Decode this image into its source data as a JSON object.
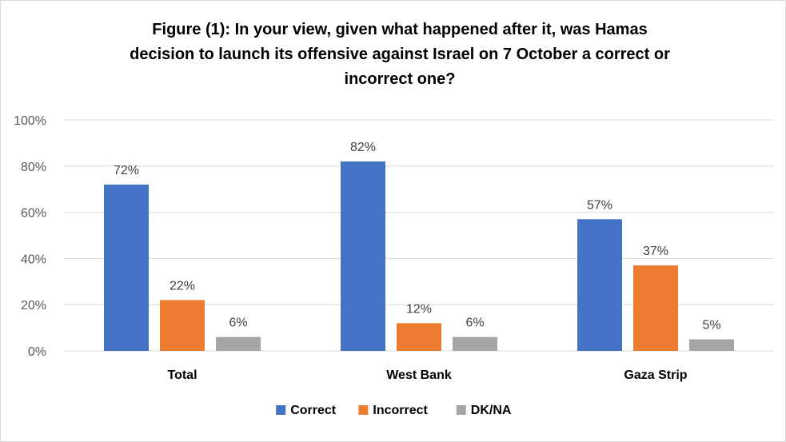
{
  "chart_data": {
    "type": "bar",
    "title_lines": [
      "Figure (1): In your view, given what happened after it, was Hamas",
      "decision to launch its offensive against Israel on 7 October a correct or",
      "incorrect one?"
    ],
    "categories": [
      "Total",
      "West Bank",
      "Gaza Strip"
    ],
    "series": [
      {
        "name": "Correct",
        "values": [
          72,
          82,
          57
        ],
        "color": "#4472C4"
      },
      {
        "name": "Incorrect",
        "values": [
          22,
          12,
          37
        ],
        "color": "#ED7D31"
      },
      {
        "name": "DK/NA",
        "values": [
          6,
          6,
          5
        ],
        "color": "#A5A5A5"
      }
    ],
    "value_suffix": "%",
    "ylim": [
      0,
      100
    ],
    "yticks": [
      0,
      20,
      40,
      60,
      80,
      100
    ],
    "ytick_labels": [
      "0%",
      "20%",
      "40%",
      "60%",
      "80%",
      "100%"
    ],
    "grid": true,
    "legend_position": "bottom"
  }
}
